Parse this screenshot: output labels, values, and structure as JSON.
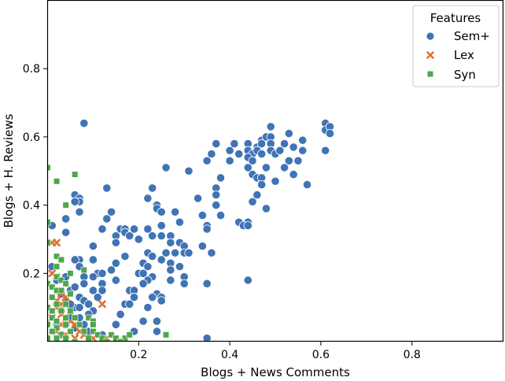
{
  "chart_data": {
    "type": "scatter",
    "title": "",
    "xlabel": "Blogs + News Comments",
    "ylabel": "Blogs + H. Reviews",
    "xlim": [
      0.0,
      1.0
    ],
    "ylim": [
      0.0,
      1.0
    ],
    "xticks": [
      0.2,
      0.4,
      0.6,
      0.8
    ],
    "yticks": [
      0.2,
      0.4,
      0.6,
      0.8
    ],
    "xtick_labels": [
      "0.2",
      "0.4",
      "0.6",
      "0.8"
    ],
    "ytick_labels": [
      "0.2",
      "0.4",
      "0.6",
      "0.8"
    ],
    "grid": false,
    "legend": {
      "title": "Features",
      "position": "upper right"
    },
    "series": [
      {
        "name": "Sem+",
        "marker": "circle",
        "color": "#3f74b5",
        "points": [
          [
            0.61,
            0.64
          ],
          [
            0.61,
            0.62
          ],
          [
            0.62,
            0.63
          ],
          [
            0.62,
            0.61
          ],
          [
            0.61,
            0.56
          ],
          [
            0.08,
            0.64
          ],
          [
            0.49,
            0.63
          ],
          [
            0.53,
            0.61
          ],
          [
            0.47,
            0.59
          ],
          [
            0.48,
            0.6
          ],
          [
            0.49,
            0.6
          ],
          [
            0.56,
            0.59
          ],
          [
            0.37,
            0.58
          ],
          [
            0.41,
            0.58
          ],
          [
            0.44,
            0.58
          ],
          [
            0.46,
            0.57
          ],
          [
            0.47,
            0.58
          ],
          [
            0.49,
            0.58
          ],
          [
            0.52,
            0.58
          ],
          [
            0.54,
            0.57
          ],
          [
            0.56,
            0.56
          ],
          [
            0.4,
            0.56
          ],
          [
            0.42,
            0.55
          ],
          [
            0.44,
            0.56
          ],
          [
            0.45,
            0.55
          ],
          [
            0.46,
            0.56
          ],
          [
            0.47,
            0.55
          ],
          [
            0.49,
            0.56
          ],
          [
            0.5,
            0.55
          ],
          [
            0.51,
            0.56
          ],
          [
            0.36,
            0.55
          ],
          [
            0.35,
            0.53
          ],
          [
            0.4,
            0.53
          ],
          [
            0.44,
            0.54
          ],
          [
            0.45,
            0.53
          ],
          [
            0.48,
            0.51
          ],
          [
            0.53,
            0.53
          ],
          [
            0.55,
            0.53
          ],
          [
            0.26,
            0.51
          ],
          [
            0.31,
            0.5
          ],
          [
            0.44,
            0.51
          ],
          [
            0.45,
            0.49
          ],
          [
            0.46,
            0.48
          ],
          [
            0.47,
            0.48
          ],
          [
            0.52,
            0.51
          ],
          [
            0.54,
            0.49
          ],
          [
            0.38,
            0.48
          ],
          [
            0.5,
            0.47
          ],
          [
            0.47,
            0.46
          ],
          [
            0.57,
            0.46
          ],
          [
            0.37,
            0.45
          ],
          [
            0.13,
            0.45
          ],
          [
            0.23,
            0.45
          ],
          [
            0.46,
            0.43
          ],
          [
            0.37,
            0.43
          ],
          [
            0.33,
            0.42
          ],
          [
            0.22,
            0.42
          ],
          [
            0.45,
            0.41
          ],
          [
            0.06,
            0.43
          ],
          [
            0.07,
            0.42
          ],
          [
            0.07,
            0.41
          ],
          [
            0.06,
            0.41
          ],
          [
            0.24,
            0.4
          ],
          [
            0.24,
            0.39
          ],
          [
            0.37,
            0.4
          ],
          [
            0.48,
            0.39
          ],
          [
            0.07,
            0.38
          ],
          [
            0.14,
            0.38
          ],
          [
            0.25,
            0.38
          ],
          [
            0.28,
            0.38
          ],
          [
            0.34,
            0.37
          ],
          [
            0.38,
            0.37
          ],
          [
            0.13,
            0.36
          ],
          [
            0.04,
            0.36
          ],
          [
            0.29,
            0.35
          ],
          [
            0.42,
            0.35
          ],
          [
            0.44,
            0.35
          ],
          [
            0.43,
            0.34
          ],
          [
            0.44,
            0.34
          ],
          [
            0.35,
            0.34
          ],
          [
            0.25,
            0.34
          ],
          [
            0.01,
            0.34
          ],
          [
            0.12,
            0.33
          ],
          [
            0.16,
            0.33
          ],
          [
            0.17,
            0.33
          ],
          [
            0.19,
            0.33
          ],
          [
            0.22,
            0.33
          ],
          [
            0.35,
            0.33
          ],
          [
            0.04,
            0.32
          ],
          [
            0.17,
            0.32
          ],
          [
            0.18,
            0.31
          ],
          [
            0.15,
            0.31
          ],
          [
            0.23,
            0.31
          ],
          [
            0.25,
            0.31
          ],
          [
            0.27,
            0.31
          ],
          [
            0.2,
            0.3
          ],
          [
            0.15,
            0.29
          ],
          [
            0.27,
            0.29
          ],
          [
            0.29,
            0.29
          ],
          [
            0.3,
            0.28
          ],
          [
            0.34,
            0.28
          ],
          [
            0.1,
            0.28
          ],
          [
            0.22,
            0.26
          ],
          [
            0.26,
            0.26
          ],
          [
            0.28,
            0.26
          ],
          [
            0.3,
            0.26
          ],
          [
            0.31,
            0.26
          ],
          [
            0.36,
            0.26
          ],
          [
            0.23,
            0.25
          ],
          [
            0.17,
            0.25
          ],
          [
            0.07,
            0.24
          ],
          [
            0.06,
            0.24
          ],
          [
            0.1,
            0.24
          ],
          [
            0.25,
            0.24
          ],
          [
            0.27,
            0.23
          ],
          [
            0.15,
            0.23
          ],
          [
            0.21,
            0.23
          ],
          [
            0.22,
            0.22
          ],
          [
            0.01,
            0.22
          ],
          [
            0.07,
            0.22
          ],
          [
            0.27,
            0.21
          ],
          [
            0.29,
            0.22
          ],
          [
            0.14,
            0.21
          ],
          [
            0.2,
            0.2
          ],
          [
            0.21,
            0.2
          ],
          [
            0.11,
            0.2
          ],
          [
            0.12,
            0.2
          ],
          [
            0.08,
            0.19
          ],
          [
            0.1,
            0.19
          ],
          [
            0.23,
            0.19
          ],
          [
            0.3,
            0.19
          ],
          [
            0.44,
            0.18
          ],
          [
            0.15,
            0.18
          ],
          [
            0.22,
            0.18
          ],
          [
            0.27,
            0.18
          ],
          [
            0.12,
            0.17
          ],
          [
            0.35,
            0.17
          ],
          [
            0.21,
            0.17
          ],
          [
            0.08,
            0.17
          ],
          [
            0.3,
            0.17
          ],
          [
            0.18,
            0.15
          ],
          [
            0.19,
            0.15
          ],
          [
            0.12,
            0.15
          ],
          [
            0.1,
            0.15
          ],
          [
            0.24,
            0.14
          ],
          [
            0.25,
            0.13
          ],
          [
            0.11,
            0.13
          ],
          [
            0.19,
            0.13
          ],
          [
            0.07,
            0.13
          ],
          [
            0.08,
            0.12
          ],
          [
            0.23,
            0.13
          ],
          [
            0.25,
            0.12
          ],
          [
            0.17,
            0.11
          ],
          [
            0.18,
            0.11
          ],
          [
            0.09,
            0.11
          ],
          [
            0.22,
            0.1
          ],
          [
            0.06,
            0.1
          ],
          [
            0.1,
            0.09
          ],
          [
            0.16,
            0.08
          ],
          [
            0.09,
            0.08
          ],
          [
            0.24,
            0.06
          ],
          [
            0.21,
            0.06
          ],
          [
            0.15,
            0.05
          ],
          [
            0.07,
            0.07
          ],
          [
            0.08,
            0.05
          ],
          [
            0.19,
            0.03
          ],
          [
            0.24,
            0.03
          ],
          [
            0.12,
            0.02
          ],
          [
            0.35,
            0.01
          ],
          [
            0.05,
            0.15
          ],
          [
            0.04,
            0.12
          ],
          [
            0.03,
            0.09
          ],
          [
            0.05,
            0.07
          ],
          [
            0.02,
            0.05
          ],
          [
            0.06,
            0.04
          ],
          [
            0.09,
            0.03
          ],
          [
            0.03,
            0.02
          ],
          [
            0.02,
            0.18
          ],
          [
            0.04,
            0.19
          ],
          [
            0.06,
            0.16
          ],
          [
            0.03,
            0.14
          ],
          [
            0.05,
            0.11
          ],
          [
            0.07,
            0.1
          ],
          [
            0.04,
            0.05
          ]
        ]
      },
      {
        "name": "Lex",
        "marker": "x",
        "color": "#e0732b",
        "points": [
          [
            0.01,
            0.29
          ],
          [
            0.02,
            0.29
          ],
          [
            0.12,
            0.11
          ],
          [
            0.01,
            0.2
          ],
          [
            0.02,
            0.19
          ],
          [
            0.03,
            0.14
          ],
          [
            0.02,
            0.12
          ],
          [
            0.04,
            0.13
          ],
          [
            0.02,
            0.1
          ],
          [
            0.03,
            0.08
          ],
          [
            0.04,
            0.07
          ],
          [
            0.05,
            0.09
          ],
          [
            0.05,
            0.06
          ],
          [
            0.03,
            0.05
          ],
          [
            0.06,
            0.05
          ],
          [
            0.07,
            0.03
          ],
          [
            0.04,
            0.02
          ],
          [
            0.08,
            0.02
          ],
          [
            0.1,
            0.01
          ],
          [
            0.13,
            0.01
          ],
          [
            0.01,
            0.07
          ],
          [
            0.02,
            0.03
          ],
          [
            0.06,
            0.01
          ],
          [
            0.03,
            0.11
          ]
        ]
      },
      {
        "name": "Syn",
        "marker": "square",
        "color": "#4ea64a",
        "points": [
          [
            0.0,
            0.51
          ],
          [
            0.06,
            0.49
          ],
          [
            0.02,
            0.47
          ],
          [
            0.04,
            0.4
          ],
          [
            0.0,
            0.35
          ],
          [
            0.0,
            0.29
          ],
          [
            0.02,
            0.25
          ],
          [
            0.03,
            0.24
          ],
          [
            0.02,
            0.22
          ],
          [
            0.08,
            0.21
          ],
          [
            0.05,
            0.2
          ],
          [
            0.02,
            0.19
          ],
          [
            0.03,
            0.18
          ],
          [
            0.0,
            0.17
          ],
          [
            0.01,
            0.16
          ],
          [
            0.04,
            0.17
          ],
          [
            0.02,
            0.15
          ],
          [
            0.03,
            0.15
          ],
          [
            0.01,
            0.13
          ],
          [
            0.05,
            0.14
          ],
          [
            0.02,
            0.11
          ],
          [
            0.04,
            0.11
          ],
          [
            0.0,
            0.1
          ],
          [
            0.01,
            0.09
          ],
          [
            0.03,
            0.09
          ],
          [
            0.05,
            0.09
          ],
          [
            0.01,
            0.07
          ],
          [
            0.02,
            0.06
          ],
          [
            0.04,
            0.07
          ],
          [
            0.06,
            0.07
          ],
          [
            0.09,
            0.07
          ],
          [
            0.1,
            0.06
          ],
          [
            0.0,
            0.05
          ],
          [
            0.02,
            0.04
          ],
          [
            0.04,
            0.05
          ],
          [
            0.07,
            0.05
          ],
          [
            0.1,
            0.05
          ],
          [
            0.01,
            0.03
          ],
          [
            0.03,
            0.02
          ],
          [
            0.05,
            0.03
          ],
          [
            0.08,
            0.03
          ],
          [
            0.1,
            0.03
          ],
          [
            0.0,
            0.01
          ],
          [
            0.02,
            0.01
          ],
          [
            0.04,
            0.01
          ],
          [
            0.06,
            0.0
          ],
          [
            0.09,
            0.01
          ],
          [
            0.11,
            0.02
          ],
          [
            0.12,
            0.01
          ],
          [
            0.14,
            0.02
          ],
          [
            0.15,
            0.01
          ],
          [
            0.17,
            0.01
          ],
          [
            0.18,
            0.02
          ],
          [
            0.26,
            0.02
          ],
          [
            0.13,
            0.0
          ],
          [
            0.16,
            0.0
          ]
        ]
      }
    ]
  }
}
